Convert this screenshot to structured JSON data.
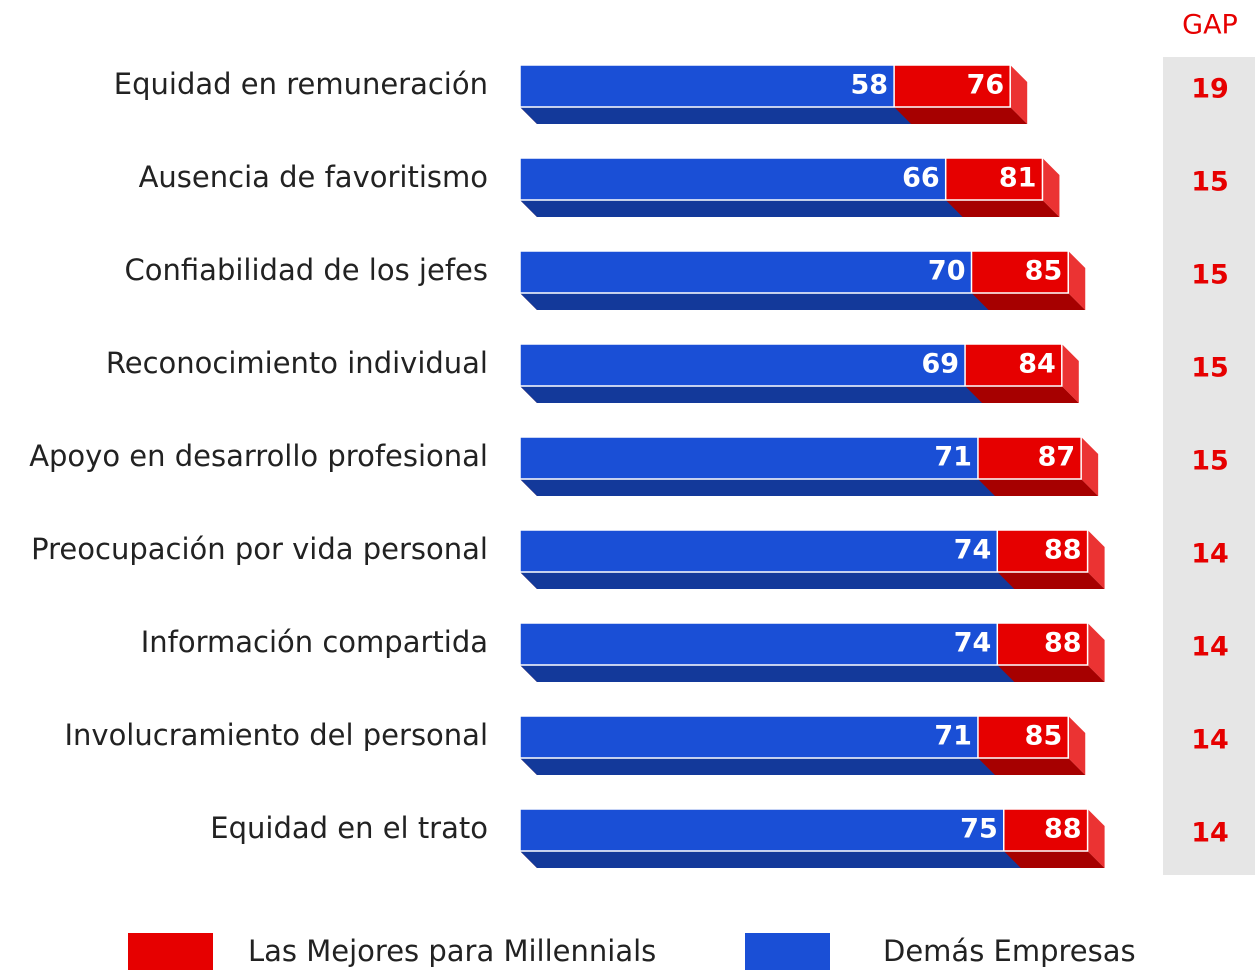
{
  "chart_data": {
    "type": "bar",
    "orientation": "horizontal",
    "categories": [
      "Equidad en remuneración",
      "Ausencia de favoritismo",
      "Confiabilidad de los jefes",
      "Reconocimiento individual",
      "Apoyo en desarrollo profesional",
      "Preocupación por vida personal",
      "Información compartida",
      "Involucramiento del personal",
      "Equidad en el trato"
    ],
    "series": [
      {
        "name": "Las Mejores para Millennials",
        "color": "#e60000",
        "values": [
          76,
          81,
          85,
          84,
          87,
          88,
          88,
          85,
          88
        ]
      },
      {
        "name": "Demás Empresas",
        "color": "#1a4fd6",
        "values": [
          58,
          66,
          70,
          69,
          71,
          74,
          74,
          71,
          75
        ]
      }
    ],
    "gap_title": "GAP",
    "gap": [
      19,
      15,
      15,
      15,
      15,
      14,
      14,
      14,
      14
    ]
  }
}
